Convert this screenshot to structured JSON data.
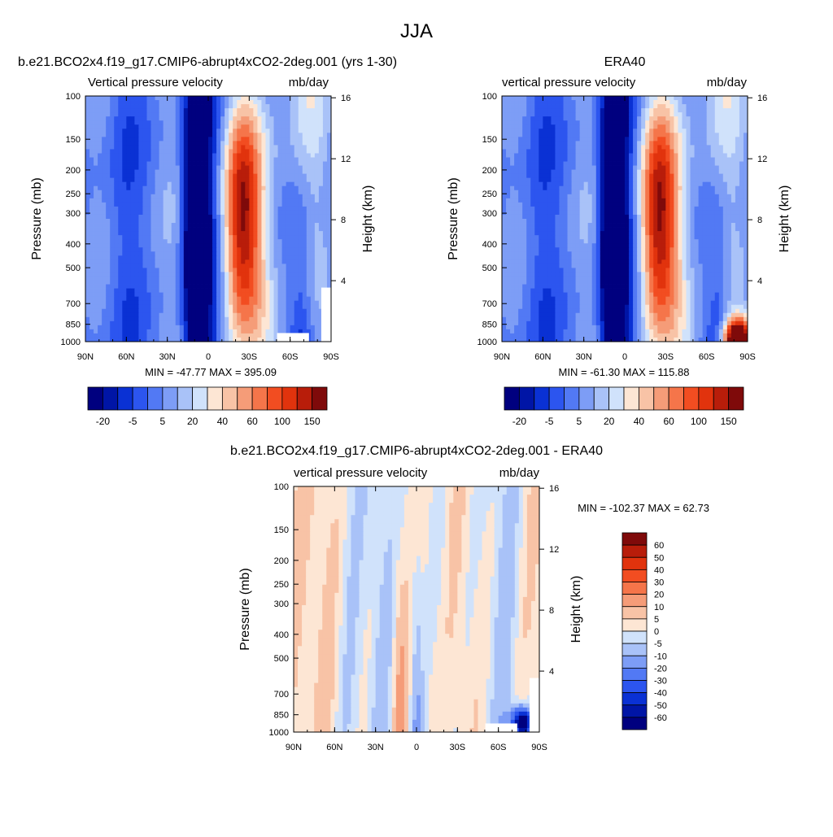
{
  "figure": {
    "title": "JJA"
  },
  "colors": {
    "blue": [
      "#00007f",
      "#0015a6",
      "#0a31d4",
      "#2c55ef",
      "#5279f4",
      "#7d9df6",
      "#a9c2f8",
      "#d0e2fb"
    ],
    "red": [
      "#fde6d4",
      "#f8c3a6",
      "#f59c78",
      "#f5754a",
      "#f24d21",
      "#e1330d",
      "#b81d0a",
      "#7f0a0a"
    ]
  },
  "chart_data": [
    {
      "id": "model",
      "type": "contour",
      "title": "b.e21.BCO2x4.f19_g17.CMIP6-abrupt4xCO2-2deg.001 (yrs 1-30)",
      "variable": "Vertical pressure velocity",
      "units": "mb/day",
      "ylabel": "Pressure (mb)",
      "ylabel_right": "Height (km)",
      "x_ticks": [
        "90N",
        "60N",
        "30N",
        "0",
        "30S",
        "60S",
        "90S"
      ],
      "y_ticks": [
        "100",
        "150",
        "200",
        "250",
        "300",
        "400",
        "500",
        "700",
        "850",
        "1000"
      ],
      "height_ticks": [
        "16",
        "12",
        "8",
        "4"
      ],
      "stats": "MIN = -47.77  MAX = 395.09",
      "colorbar_labels": [
        "-20",
        "-5",
        "5",
        "20",
        "40",
        "60",
        "100",
        "150"
      ],
      "x": [
        90,
        60,
        30,
        0,
        -30,
        -60,
        -90
      ],
      "min": -47.77,
      "max": 395.09
    },
    {
      "id": "obs",
      "type": "contour",
      "title": "ERA40",
      "variable": "vertical pressure velocity",
      "units": "mb/day",
      "ylabel": "Pressure (mb)",
      "ylabel_right": "Height (km)",
      "x_ticks": [
        "90N",
        "60N",
        "30N",
        "0",
        "30S",
        "60S",
        "90S"
      ],
      "y_ticks": [
        "100",
        "150",
        "200",
        "250",
        "300",
        "400",
        "500",
        "700",
        "850",
        "1000"
      ],
      "height_ticks": [
        "16",
        "12",
        "8",
        "4"
      ],
      "stats": "MIN = -61.30  MAX = 115.88",
      "colorbar_labels": [
        "-20",
        "-5",
        "5",
        "20",
        "40",
        "60",
        "100",
        "150"
      ],
      "x": [
        90,
        60,
        30,
        0,
        -30,
        -60,
        -90
      ],
      "min": -61.3,
      "max": 115.88
    },
    {
      "id": "diff",
      "type": "contour",
      "title": "b.e21.BCO2x4.f19_g17.CMIP6-abrupt4xCO2-2deg.001 - ERA40",
      "variable": "vertical pressure velocity",
      "units": "mb/day",
      "ylabel": "Pressure (mb)",
      "ylabel_right": "Height (km)",
      "x_ticks": [
        "90N",
        "60N",
        "30N",
        "0",
        "30S",
        "60S",
        "90S"
      ],
      "y_ticks": [
        "100",
        "150",
        "200",
        "250",
        "300",
        "400",
        "500",
        "700",
        "850",
        "1000"
      ],
      "height_ticks": [
        "16",
        "12",
        "8",
        "4"
      ],
      "stats": "MIN = -102.37  MAX =  62.73",
      "colorbar_labels": [
        "60",
        "50",
        "40",
        "30",
        "20",
        "10",
        "5",
        "0",
        "-5",
        "-10",
        "-20",
        "-30",
        "-40",
        "-50",
        "-60"
      ],
      "x": [
        90,
        60,
        30,
        0,
        -30,
        -60,
        -90
      ],
      "min": -102.37,
      "max": 62.73
    }
  ]
}
